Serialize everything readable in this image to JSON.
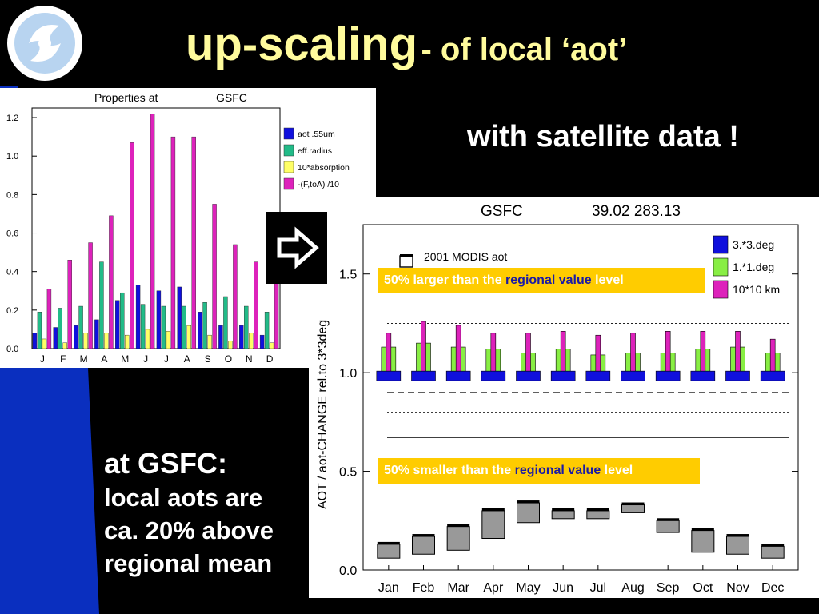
{
  "slide": {
    "title_main": "up-scaling",
    "title_sub": "- of local ‘aot’",
    "subtitle": "with satellite data !",
    "note_line1": "at GSFC:",
    "note_lines": [
      "local aots are",
      "ca. 20% above",
      "regional mean"
    ],
    "background_color": "#000000",
    "stripe_color": "#0a2fbf",
    "title_color": "#fffb9c"
  },
  "chart_data": [
    {
      "type": "bar",
      "title_left": "Properties at",
      "title_right": "GSFC",
      "categories": [
        "J",
        "F",
        "M",
        "A",
        "M",
        "J",
        "J",
        "A",
        "S",
        "O",
        "N",
        "D"
      ],
      "ylim": [
        0,
        1.25
      ],
      "yticks": [
        "1.2",
        "1.0",
        "0.8",
        "0.6",
        "0.4",
        "0.2",
        "0.0"
      ],
      "legend_position": "top-right",
      "series": [
        {
          "name": "aot .55um",
          "color": "#1010dd",
          "values": [
            0.08,
            0.11,
            0.12,
            0.15,
            0.25,
            0.33,
            0.3,
            0.32,
            0.19,
            0.12,
            0.12,
            0.07
          ]
        },
        {
          "name": "eff.radius",
          "color": "#22bb88",
          "values": [
            0.19,
            0.21,
            0.22,
            0.45,
            0.29,
            0.23,
            0.22,
            0.22,
            0.24,
            0.27,
            0.22,
            0.19
          ]
        },
        {
          "name": "10*absorption",
          "color": "#ffff66",
          "values": [
            0.05,
            0.03,
            0.08,
            0.08,
            0.07,
            0.1,
            0.09,
            0.12,
            0.07,
            0.04,
            0.08,
            0.03
          ]
        },
        {
          "name": "-(F,toA) /10",
          "color": "#dd22bb",
          "values": [
            0.31,
            0.46,
            0.55,
            0.69,
            1.07,
            1.22,
            1.1,
            1.1,
            0.75,
            0.54,
            0.45,
            0.34
          ]
        }
      ]
    },
    {
      "type": "bar",
      "title_site": "GSFC",
      "title_coords": "39.02  283.13",
      "ylabel": "AOT / aot-CHANGE rel.to 3*3deg",
      "categories": [
        "Jan",
        "Feb",
        "Mar",
        "Apr",
        "May",
        "Jun",
        "Jul",
        "Aug",
        "Sep",
        "Oct",
        "Nov",
        "Dec"
      ],
      "ylim": [
        0,
        1.75
      ],
      "yticks": [
        "1.5",
        "1.0",
        "0.5",
        "0.0"
      ],
      "legend_position": "top-right",
      "legend_left": [
        "2001 MODIS aot"
      ],
      "reference_lines": [
        1.25,
        1.1,
        0.9,
        0.8,
        0.67
      ],
      "aot_box": {
        "top": [
          0.13,
          0.17,
          0.22,
          0.3,
          0.34,
          0.3,
          0.3,
          0.33,
          0.25,
          0.2,
          0.17,
          0.12
        ],
        "bottom": [
          0.06,
          0.08,
          0.1,
          0.16,
          0.24,
          0.26,
          0.26,
          0.29,
          0.19,
          0.09,
          0.08,
          0.06
        ]
      },
      "series": [
        {
          "name": "3.*3.deg",
          "color": "#1010dd",
          "values": [
            1.0,
            1.0,
            1.0,
            1.0,
            1.0,
            1.0,
            1.0,
            1.0,
            1.0,
            1.0,
            1.0,
            1.0
          ]
        },
        {
          "name": "1.*1.deg",
          "color": "#88ee44",
          "values": [
            1.13,
            1.15,
            1.13,
            1.12,
            1.1,
            1.12,
            1.09,
            1.1,
            1.1,
            1.12,
            1.13,
            1.1
          ]
        },
        {
          "name": "10*10 km",
          "color": "#dd22bb",
          "values": [
            1.2,
            1.26,
            1.24,
            1.2,
            1.2,
            1.21,
            1.19,
            1.2,
            1.21,
            1.21,
            1.21,
            1.17
          ]
        }
      ]
    }
  ],
  "callouts": {
    "larger": {
      "prefix": "50% larger than the ",
      "highlight": "regional value",
      "suffix": " level"
    },
    "smaller": {
      "prefix": "50% smaller than the ",
      "highlight": "regional value",
      "suffix": " level"
    }
  }
}
